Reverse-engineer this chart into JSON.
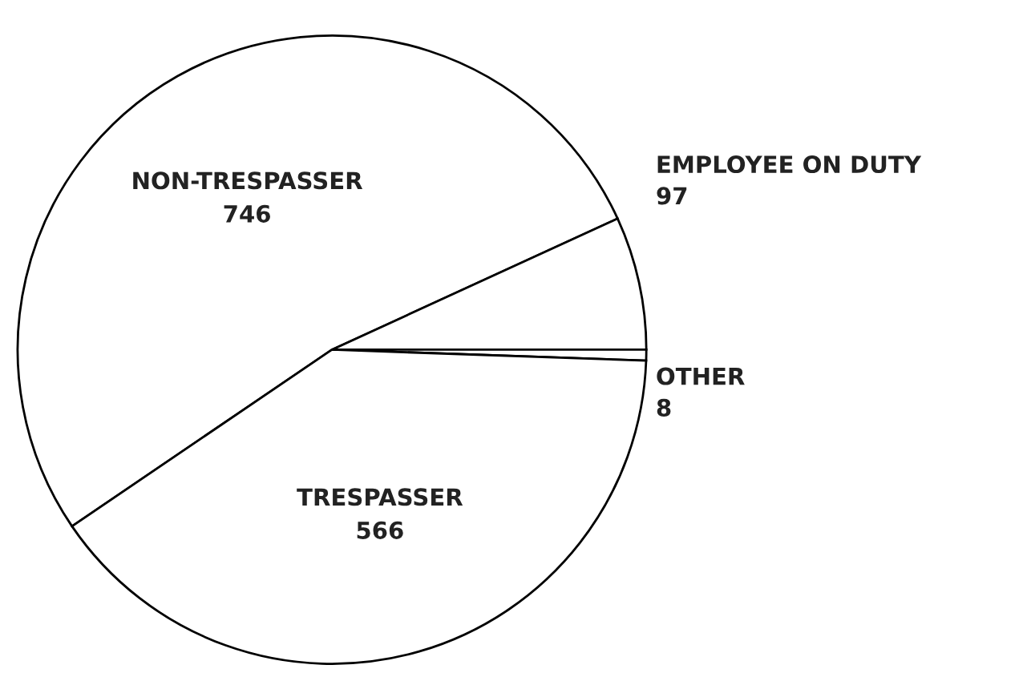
{
  "chart_data": {
    "type": "pie",
    "categories": [
      "NON-TRESPASSER",
      "EMPLOYEE ON DUTY",
      "OTHER",
      "TRESPASSER"
    ],
    "values": [
      746,
      97,
      8,
      566
    ],
    "colors": [
      "#ffffff",
      "#ffffff",
      "#ffffff",
      "#ffffff"
    ],
    "data_labels": true
  }
}
